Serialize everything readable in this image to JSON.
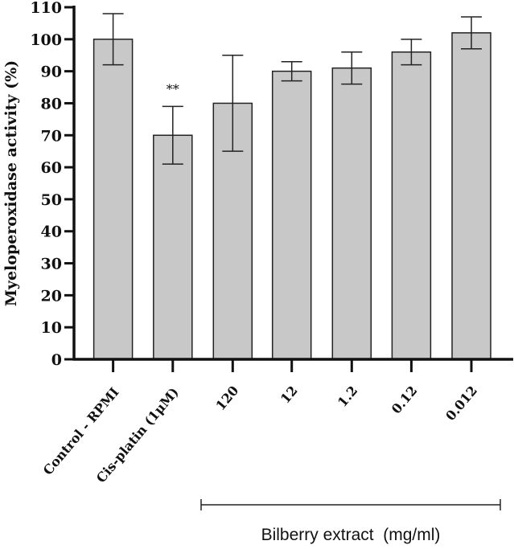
{
  "chart_data": {
    "type": "bar",
    "title": "",
    "xlabel": "",
    "ylabel": "Myeloperoxidase activity (%)",
    "ylim": [
      0,
      110
    ],
    "yticks": [
      0,
      10,
      20,
      30,
      40,
      50,
      60,
      70,
      80,
      90,
      100,
      110
    ],
    "grid": false,
    "categories": [
      "Control - RPMI",
      "Cis-platin (1μM)",
      "120",
      "12",
      "1.2",
      "0.12",
      "0.012"
    ],
    "values": [
      100,
      70,
      80,
      90,
      91,
      96,
      102
    ],
    "error_low": [
      92,
      61,
      65,
      87,
      86,
      92,
      97
    ],
    "error_high": [
      108,
      79,
      95,
      93,
      96,
      100,
      107
    ],
    "annotations": [
      {
        "category": "Cis-platin (1μM)",
        "text": "**"
      }
    ],
    "group_label": {
      "text": "Bilberry extract  (mg/ml)",
      "categories": [
        "120",
        "12",
        "1.2",
        "0.12",
        "0.012"
      ]
    },
    "bar_color": "#c8c8c8",
    "edge_color": "#222222"
  }
}
